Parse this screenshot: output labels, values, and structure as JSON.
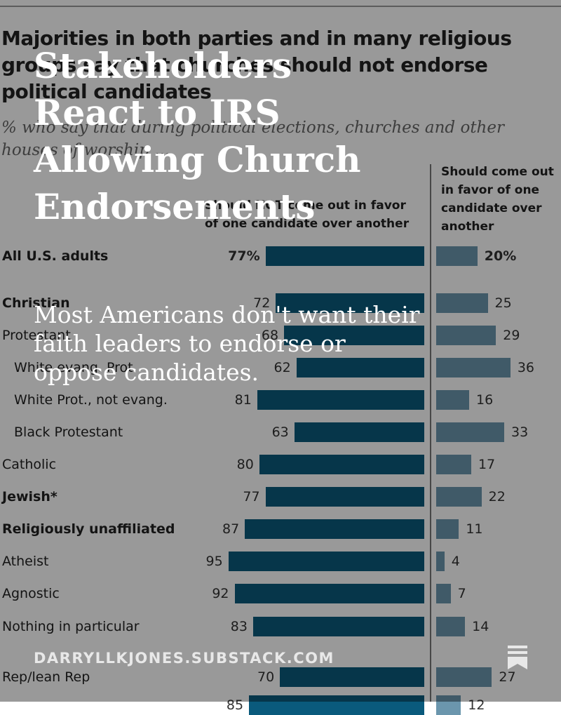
{
  "post": {
    "headline": "Stakeholders React to IRS Allowing Church Endorsements",
    "subheadline": "Most Americans don't want their faith leaders to endorse or oppose candidates.",
    "footer_domain": "DARRYLLKJONES.SUBSTACK.COM",
    "overlay_color": "#000000",
    "bookmark_icon": "bookmark-icon"
  },
  "chart_data": {
    "type": "bar",
    "title": "Majorities in both parties and in many religious groups say that churches should not endorse political candidates",
    "subtitle": "% who say that during political elections, churches and other houses of worship ...",
    "series": [
      {
        "name": "Should NOT come out in favor of one candidate over another",
        "color": "#0a5a7c",
        "values": [
          77,
          72,
          68,
          62,
          81,
          63,
          80,
          77,
          87,
          95,
          92,
          83,
          70,
          85
        ]
      },
      {
        "name": "Should come out in favor of one candidate over another",
        "color": "#6b96ad",
        "values": [
          20,
          25,
          29,
          36,
          16,
          33,
          17,
          22,
          11,
          4,
          7,
          14,
          27,
          12
        ]
      }
    ],
    "categories": [
      "All U.S. adults",
      "Christian",
      "Protestant",
      "White evang. Prot.",
      "White Prot., not evang.",
      "Black Protestant",
      "Catholic",
      "Jewish*",
      "Religiously unaffiliated",
      "Atheist",
      "Agnostic",
      "Nothing in particular",
      "Rep/lean Rep",
      ""
    ],
    "label_suffix_first": "%",
    "xlim": [
      0,
      100
    ]
  }
}
